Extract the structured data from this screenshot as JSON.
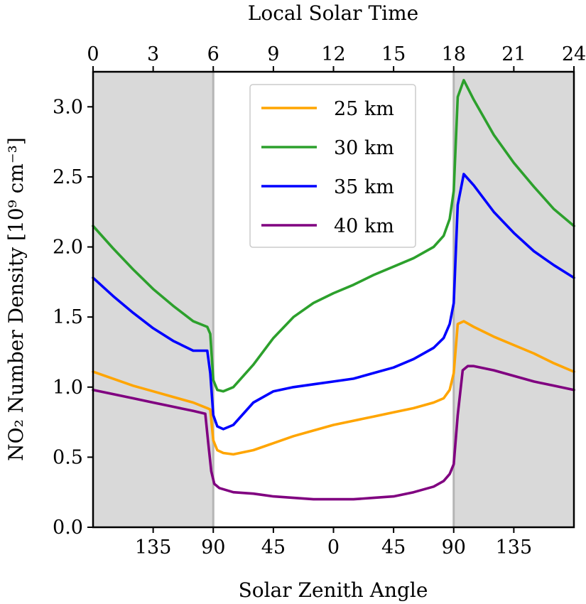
{
  "chart_data": {
    "type": "line",
    "title": "",
    "top_xlabel": "Local Solar Time",
    "xlabel": "Solar Zenith Angle",
    "ylabel": "NO₂ Number Density [10⁹ cm⁻³]",
    "xlim": [
      0,
      24
    ],
    "ylim": [
      0.0,
      3.25
    ],
    "top_ticks": [
      0,
      3,
      6,
      9,
      12,
      15,
      18,
      21,
      24
    ],
    "top_tick_labels": [
      "0",
      "3",
      "6",
      "9",
      "12",
      "15",
      "18",
      "21",
      "24"
    ],
    "bottom_ticks": [
      3,
      6,
      9,
      12,
      15,
      18,
      21
    ],
    "bottom_tick_labels": [
      "135",
      "90",
      "45",
      "0",
      "45",
      "90",
      "135"
    ],
    "y_ticks": [
      0.0,
      0.5,
      1.0,
      1.5,
      2.0,
      2.5,
      3.0
    ],
    "y_tick_labels": [
      "0.0",
      "0.5",
      "1.0",
      "1.5",
      "2.0",
      "2.5",
      "3.0"
    ],
    "night_regions": [
      [
        0,
        6
      ],
      [
        18,
        24
      ]
    ],
    "night_color": "#d9d9d9",
    "legend_position": "top-center",
    "grid": false,
    "series": [
      {
        "name": "25 km",
        "color": "#ffa500",
        "points": [
          [
            0,
            1.11
          ],
          [
            1,
            1.06
          ],
          [
            2,
            1.01
          ],
          [
            3,
            0.97
          ],
          [
            4,
            0.93
          ],
          [
            5,
            0.89
          ],
          [
            5.7,
            0.85
          ],
          [
            5.85,
            0.84
          ],
          [
            6.0,
            0.62
          ],
          [
            6.2,
            0.55
          ],
          [
            6.5,
            0.53
          ],
          [
            7,
            0.52
          ],
          [
            8,
            0.55
          ],
          [
            9,
            0.6
          ],
          [
            10,
            0.65
          ],
          [
            11,
            0.69
          ],
          [
            12,
            0.73
          ],
          [
            13,
            0.76
          ],
          [
            14,
            0.79
          ],
          [
            15,
            0.82
          ],
          [
            16,
            0.85
          ],
          [
            17,
            0.89
          ],
          [
            17.5,
            0.92
          ],
          [
            17.8,
            0.98
          ],
          [
            18.0,
            1.1
          ],
          [
            18.2,
            1.45
          ],
          [
            18.5,
            1.47
          ],
          [
            19,
            1.43
          ],
          [
            20,
            1.36
          ],
          [
            21,
            1.3
          ],
          [
            22,
            1.24
          ],
          [
            23,
            1.17
          ],
          [
            24,
            1.11
          ]
        ]
      },
      {
        "name": "30 km",
        "color": "#2ca02c",
        "points": [
          [
            0,
            2.15
          ],
          [
            1,
            1.99
          ],
          [
            2,
            1.84
          ],
          [
            3,
            1.7
          ],
          [
            4,
            1.58
          ],
          [
            5,
            1.47
          ],
          [
            5.7,
            1.43
          ],
          [
            5.85,
            1.38
          ],
          [
            6.0,
            1.05
          ],
          [
            6.2,
            0.98
          ],
          [
            6.5,
            0.97
          ],
          [
            7,
            1.0
          ],
          [
            8,
            1.16
          ],
          [
            9,
            1.35
          ],
          [
            10,
            1.5
          ],
          [
            11,
            1.6
          ],
          [
            12,
            1.67
          ],
          [
            13,
            1.73
          ],
          [
            14,
            1.8
          ],
          [
            15,
            1.86
          ],
          [
            16,
            1.92
          ],
          [
            17,
            2.0
          ],
          [
            17.5,
            2.08
          ],
          [
            17.8,
            2.2
          ],
          [
            18.0,
            2.4
          ],
          [
            18.2,
            3.07
          ],
          [
            18.5,
            3.19
          ],
          [
            19,
            3.05
          ],
          [
            20,
            2.8
          ],
          [
            21,
            2.6
          ],
          [
            22,
            2.43
          ],
          [
            23,
            2.27
          ],
          [
            24,
            2.15
          ]
        ]
      },
      {
        "name": "35 km",
        "color": "#0000ff",
        "points": [
          [
            0,
            1.78
          ],
          [
            1,
            1.65
          ],
          [
            2,
            1.53
          ],
          [
            3,
            1.42
          ],
          [
            4,
            1.33
          ],
          [
            5,
            1.26
          ],
          [
            5.7,
            1.26
          ],
          [
            5.85,
            1.1
          ],
          [
            6.0,
            0.8
          ],
          [
            6.2,
            0.72
          ],
          [
            6.5,
            0.7
          ],
          [
            7,
            0.73
          ],
          [
            8,
            0.89
          ],
          [
            9,
            0.97
          ],
          [
            10,
            1.0
          ],
          [
            11,
            1.02
          ],
          [
            12,
            1.04
          ],
          [
            13,
            1.06
          ],
          [
            14,
            1.1
          ],
          [
            15,
            1.14
          ],
          [
            16,
            1.2
          ],
          [
            17,
            1.28
          ],
          [
            17.5,
            1.35
          ],
          [
            17.8,
            1.45
          ],
          [
            18.0,
            1.6
          ],
          [
            18.2,
            2.3
          ],
          [
            18.5,
            2.52
          ],
          [
            19,
            2.44
          ],
          [
            20,
            2.25
          ],
          [
            21,
            2.1
          ],
          [
            22,
            1.97
          ],
          [
            23,
            1.87
          ],
          [
            24,
            1.78
          ]
        ]
      },
      {
        "name": "40 km",
        "color": "#800080",
        "points": [
          [
            0,
            0.98
          ],
          [
            1,
            0.95
          ],
          [
            2,
            0.92
          ],
          [
            3,
            0.89
          ],
          [
            4,
            0.86
          ],
          [
            5,
            0.83
          ],
          [
            5.6,
            0.81
          ],
          [
            5.75,
            0.6
          ],
          [
            5.9,
            0.4
          ],
          [
            6.05,
            0.31
          ],
          [
            6.3,
            0.28
          ],
          [
            7,
            0.25
          ],
          [
            8,
            0.24
          ],
          [
            9,
            0.22
          ],
          [
            10,
            0.21
          ],
          [
            11,
            0.2
          ],
          [
            12,
            0.2
          ],
          [
            13,
            0.2
          ],
          [
            14,
            0.21
          ],
          [
            15,
            0.22
          ],
          [
            16,
            0.25
          ],
          [
            17,
            0.29
          ],
          [
            17.5,
            0.33
          ],
          [
            17.8,
            0.38
          ],
          [
            18.0,
            0.45
          ],
          [
            18.2,
            0.8
          ],
          [
            18.45,
            1.12
          ],
          [
            18.7,
            1.15
          ],
          [
            19,
            1.15
          ],
          [
            20,
            1.12
          ],
          [
            21,
            1.08
          ],
          [
            22,
            1.04
          ],
          [
            23,
            1.01
          ],
          [
            24,
            0.98
          ]
        ]
      }
    ]
  }
}
